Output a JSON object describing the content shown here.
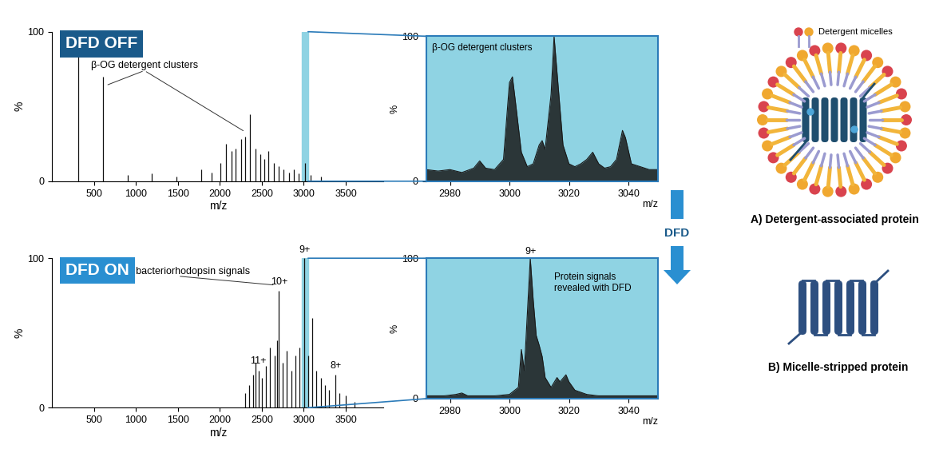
{
  "chart_data": [
    {
      "type": "bar",
      "title": "DFD OFF",
      "xlabel": "m/z",
      "ylabel": "%",
      "color": "#111111",
      "x": [
        315,
        607,
        899,
        1191,
        1483,
        1775,
        1900,
        2010,
        2070,
        2140,
        2190,
        2250,
        2300,
        2360,
        2420,
        2480,
        2530,
        2580,
        2640,
        2700,
        2760,
        2820,
        2880,
        2940,
        3010,
        3080,
        3200
      ],
      "values": [
        100,
        70,
        4,
        5,
        3,
        8,
        6,
        12,
        25,
        20,
        22,
        28,
        30,
        45,
        22,
        18,
        15,
        20,
        12,
        10,
        8,
        6,
        8,
        5,
        12,
        4,
        3
      ],
      "xlim": [
        0,
        3950
      ],
      "xticks": [
        500,
        1000,
        1500,
        2000,
        2500,
        3000,
        3500
      ],
      "ylim": [
        0,
        100
      ],
      "yticks": [
        0,
        100
      ],
      "annotations": [
        {
          "text": "β-OG detergent clusters",
          "x": 1100,
          "y": 74,
          "points": [
            [
              640,
              64
            ],
            [
              2300,
              33
            ]
          ]
        }
      ]
    },
    {
      "type": "area",
      "xlabel": "m/z",
      "ylabel": "%",
      "color": "#1a1a1a",
      "x": [
        2972,
        2976,
        2980,
        2984,
        2988,
        2990,
        2992,
        2995,
        2998,
        3000,
        3001,
        3002,
        3004,
        3006,
        3008,
        3010,
        3011,
        3012,
        3014,
        3015,
        3016,
        3018,
        3020,
        3022,
        3024,
        3026,
        3028,
        3030,
        3032,
        3034,
        3036,
        3038,
        3039,
        3041,
        3044,
        3047,
        3050
      ],
      "values": [
        8,
        7,
        8,
        6,
        9,
        14,
        9,
        8,
        15,
        68,
        72,
        55,
        20,
        10,
        12,
        25,
        28,
        22,
        60,
        100,
        75,
        25,
        12,
        10,
        12,
        15,
        20,
        12,
        9,
        10,
        15,
        35,
        30,
        12,
        10,
        8,
        8
      ],
      "xlim": [
        2972,
        3050
      ],
      "xticks": [
        2980,
        3000,
        3020,
        3040
      ],
      "ylim": [
        0,
        100
      ],
      "yticks": [
        0,
        100
      ],
      "annotations": [
        {
          "text": "β-OG detergent clusters",
          "x": 2974,
          "y": 95
        }
      ]
    },
    {
      "type": "bar",
      "title": "DFD ON",
      "xlabel": "m/z",
      "ylabel": "%",
      "color": "#111111",
      "x": [
        2300,
        2350,
        2400,
        2420,
        2460,
        2500,
        2550,
        2600,
        2650,
        2680,
        2705,
        2750,
        2800,
        2850,
        2900,
        2950,
        3006,
        3050,
        3100,
        3150,
        3200,
        3250,
        3300,
        3380,
        3420,
        3500,
        3600
      ],
      "values": [
        10,
        15,
        22,
        30,
        25,
        20,
        28,
        40,
        35,
        45,
        78,
        30,
        38,
        25,
        35,
        40,
        100,
        35,
        60,
        25,
        20,
        15,
        12,
        22,
        10,
        8,
        4
      ],
      "xlim": [
        0,
        3950
      ],
      "xticks": [
        500,
        1000,
        1500,
        2000,
        2500,
        3000,
        3500
      ],
      "ylim": [
        0,
        100
      ],
      "yticks": [
        0,
        100
      ],
      "annotations": [
        {
          "text": "native bacteriorhodopsin signals",
          "x": 1500,
          "y": 88,
          "points": [
            [
              2660,
              82
            ]
          ]
        },
        {
          "text": "10+",
          "x": 2705,
          "y": 81
        },
        {
          "text": "9+",
          "x": 3006,
          "y": 102
        },
        {
          "text": "11+",
          "x": 2460,
          "y": 28
        },
        {
          "text": "8+",
          "x": 3380,
          "y": 25
        }
      ]
    },
    {
      "type": "area",
      "xlabel": "m/z",
      "ylabel": "%",
      "color": "#1a1a1a",
      "x": [
        2972,
        2978,
        2982,
        2984,
        2986,
        2990,
        2995,
        3000,
        3003,
        3004,
        3005,
        3006,
        3007,
        3008,
        3009,
        3010,
        3011,
        3012,
        3014,
        3016,
        3017,
        3019,
        3020,
        3022,
        3026,
        3030,
        3040,
        3050
      ],
      "values": [
        2,
        2,
        3,
        4,
        2,
        2,
        2,
        3,
        8,
        35,
        20,
        60,
        100,
        70,
        45,
        38,
        30,
        15,
        8,
        15,
        12,
        17,
        12,
        6,
        3,
        2,
        2,
        2
      ],
      "xlim": [
        2972,
        3050
      ],
      "xticks": [
        2980,
        3000,
        3020,
        3040
      ],
      "ylim": [
        0,
        100
      ],
      "yticks": [
        0,
        100
      ],
      "annotations": [
        {
          "text": "9+",
          "x": 3007,
          "y": 101
        },
        {
          "text": "Protein signals\nrevealed with DFD",
          "x": 3015,
          "y": 90
        }
      ]
    }
  ],
  "diagram": {
    "arrow_label": "DFD",
    "micelle_legend": "Detergent micelles",
    "captions": [
      "A) Detergent-associated protein",
      "B) Micelle-stripped protein"
    ]
  }
}
